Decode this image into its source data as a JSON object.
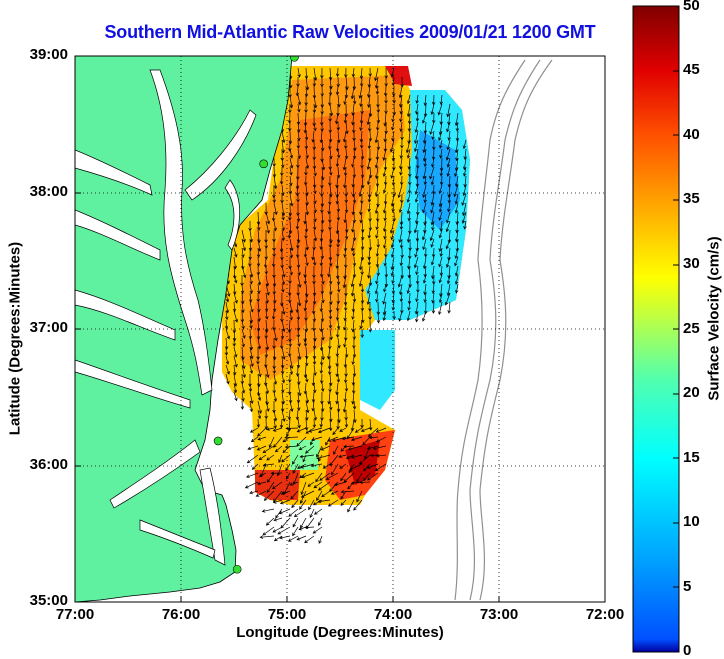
{
  "title": "Southern Mid-Atlantic Raw Velocities 2009/01/21 1200 GMT",
  "xlabel": "Longitude (Degrees:Minutes)",
  "ylabel": "Latitude (Degrees:Minutes)",
  "colorbar": {
    "label": "Surface Velocity (cm/s)",
    "min": 0,
    "max": 50,
    "ticks": [
      "0",
      "5",
      "10",
      "15",
      "20",
      "25",
      "30",
      "35",
      "40",
      "45",
      "50"
    ],
    "colormap": "jet"
  },
  "colors": {
    "land": "#5ff0a0",
    "title": "#1010e0",
    "bathymetry": "#909090",
    "station": "#33dd33"
  },
  "map": {
    "lon_range": [
      -77,
      -72
    ],
    "lat_range": [
      35,
      39
    ],
    "grid": "dotted",
    "x_ticks": [
      "77:00",
      "76:00",
      "75:00",
      "74:00",
      "73:00",
      "72:00"
    ],
    "y_ticks": [
      "35:00",
      "36:00",
      "37:00",
      "38:00",
      "39:00"
    ]
  },
  "stations": [
    {
      "lon": -74.93,
      "lat": 38.99
    },
    {
      "lon": -75.22,
      "lat": 38.21
    },
    {
      "lon": -75.65,
      "lat": 36.18
    },
    {
      "lon": -75.47,
      "lat": 35.24
    }
  ]
}
